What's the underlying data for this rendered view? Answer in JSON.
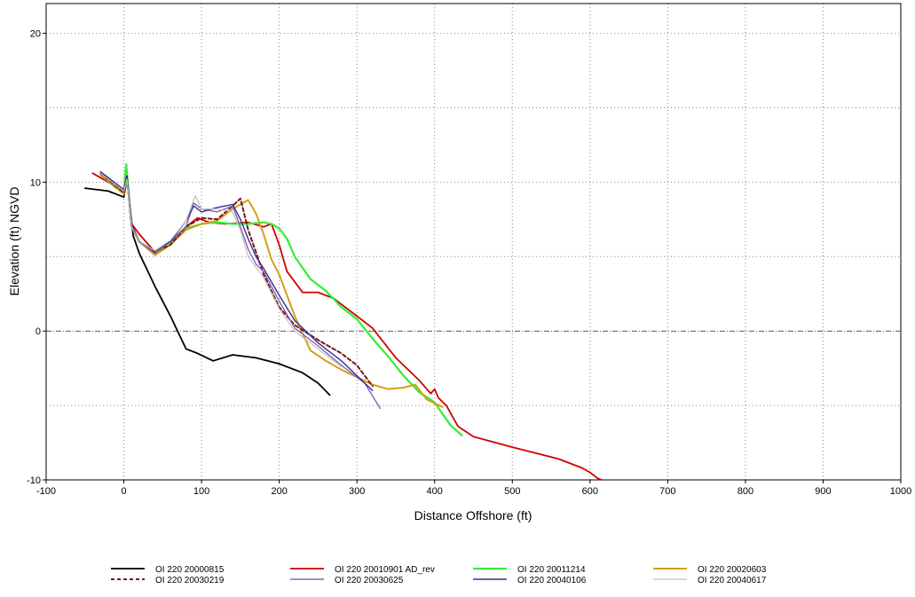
{
  "chart_data": {
    "type": "line",
    "title": "",
    "xlabel": "Distance Offshore (ft)",
    "ylabel": "Elevation (ft) NGVD",
    "xlim": [
      -100,
      1000
    ],
    "ylim": [
      -10,
      22
    ],
    "xticks": [
      -100,
      0,
      100,
      200,
      300,
      400,
      500,
      600,
      700,
      800,
      900,
      1000
    ],
    "yticks": [
      -10,
      0,
      10,
      20
    ],
    "grid": true,
    "grid_style": "dotted",
    "zero_line": true,
    "legend_position": "bottom",
    "series": [
      {
        "name": "OI 220 20000815",
        "color": "#000000",
        "width": 1.8,
        "dash": "",
        "x": [
          -50,
          -20,
          0,
          4,
          12,
          20,
          40,
          60,
          80,
          95,
          115,
          140,
          170,
          200,
          230,
          250,
          265
        ],
        "y": [
          9.6,
          9.4,
          9.0,
          10.2,
          6.4,
          5.2,
          3.0,
          1.0,
          -1.2,
          -1.5,
          -2.0,
          -1.6,
          -1.8,
          -2.2,
          -2.8,
          -3.5,
          -4.3
        ]
      },
      {
        "name": "OI 220 20010901 AD_rev",
        "color": "#d00000",
        "width": 1.8,
        "dash": "",
        "x": [
          -40,
          0,
          4,
          10,
          20,
          40,
          60,
          80,
          95,
          110,
          130,
          160,
          180,
          190,
          200,
          210,
          230,
          250,
          270,
          300,
          320,
          350,
          380,
          395,
          400,
          405,
          415,
          430,
          450,
          500,
          530,
          560,
          590,
          600,
          610,
          615
        ],
        "y": [
          10.6,
          9.4,
          10.5,
          7.2,
          6.5,
          5.3,
          6.0,
          7.0,
          7.6,
          7.3,
          7.2,
          7.3,
          7.0,
          7.2,
          5.8,
          4.0,
          2.6,
          2.6,
          2.2,
          1.0,
          0.2,
          -1.8,
          -3.3,
          -4.2,
          -3.9,
          -4.5,
          -5.0,
          -6.4,
          -7.1,
          -7.8,
          -8.2,
          -8.6,
          -9.2,
          -9.5,
          -9.9,
          -10.0
        ]
      },
      {
        "name": "OI 220 20011214",
        "color": "#33ee33",
        "width": 2.2,
        "dash": "",
        "x": [
          -30,
          -10,
          0,
          3,
          10,
          20,
          40,
          60,
          80,
          100,
          120,
          140,
          160,
          180,
          190,
          200,
          210,
          220,
          240,
          260,
          280,
          300,
          320,
          340,
          360,
          380,
          400,
          420,
          435
        ],
        "y": [
          10.5,
          9.6,
          9.4,
          11.2,
          7.0,
          6.0,
          5.3,
          6.0,
          6.9,
          7.2,
          7.3,
          7.2,
          7.2,
          7.3,
          7.2,
          6.9,
          6.2,
          5.0,
          3.5,
          2.7,
          1.6,
          0.8,
          -0.5,
          -1.7,
          -3.0,
          -4.1,
          -4.8,
          -6.3,
          -7.0
        ]
      },
      {
        "name": "OI 220 20020603",
        "color": "#d4a017",
        "width": 2.0,
        "dash": "",
        "x": [
          -30,
          0,
          4,
          10,
          20,
          40,
          60,
          80,
          100,
          120,
          140,
          160,
          170,
          180,
          190,
          200,
          220,
          240,
          260,
          280,
          300,
          320,
          340,
          360,
          375,
          390,
          410
        ],
        "y": [
          10.5,
          9.2,
          10.3,
          7.0,
          6.0,
          5.1,
          5.8,
          6.8,
          7.2,
          7.4,
          8.2,
          8.8,
          7.9,
          6.5,
          4.8,
          3.8,
          1.0,
          -1.3,
          -2.0,
          -2.6,
          -3.1,
          -3.6,
          -3.9,
          -3.8,
          -3.6,
          -4.6,
          -5.1
        ]
      },
      {
        "name": "OI 220 20030219",
        "color": "#7b1515",
        "width": 2.0,
        "dash": "4,3",
        "x": [
          -30,
          0,
          4,
          10,
          20,
          40,
          60,
          80,
          100,
          120,
          140,
          150,
          160,
          170,
          180,
          200,
          220,
          250,
          280,
          300,
          320
        ],
        "y": [
          10.6,
          9.3,
          10.4,
          7.0,
          6.0,
          5.3,
          5.8,
          7.0,
          7.6,
          7.5,
          8.4,
          8.9,
          6.8,
          5.3,
          3.8,
          1.6,
          0.4,
          -0.6,
          -1.5,
          -2.3,
          -3.7
        ]
      },
      {
        "name": "OI 220 20030625",
        "color": "#8a60b8",
        "width": 1.4,
        "dash": "",
        "x": [
          -30,
          0,
          4,
          10,
          20,
          40,
          60,
          80,
          90,
          100,
          120,
          140,
          150,
          160,
          170,
          180,
          200,
          220,
          250,
          280,
          310,
          330
        ],
        "y": [
          10.6,
          9.4,
          10.3,
          7.0,
          6.0,
          5.2,
          6.0,
          7.0,
          8.6,
          8.2,
          8.0,
          8.4,
          7.0,
          5.5,
          4.5,
          4.0,
          2.0,
          0.2,
          -1.0,
          -2.3,
          -3.5,
          -5.2
        ]
      },
      {
        "name": "OI 220 20040106",
        "color": "#303090",
        "width": 1.4,
        "dash": "",
        "x": [
          -30,
          0,
          4,
          10,
          20,
          40,
          60,
          80,
          90,
          100,
          120,
          140,
          150,
          160,
          170,
          180,
          200,
          220,
          250,
          280,
          300,
          320
        ],
        "y": [
          10.7,
          9.5,
          10.4,
          7.2,
          6.0,
          5.4,
          6.0,
          7.4,
          8.4,
          8.0,
          8.3,
          8.5,
          7.5,
          6.2,
          5.0,
          4.2,
          2.4,
          0.7,
          -0.8,
          -2.0,
          -3.0,
          -4.0
        ]
      },
      {
        "name": "OI 220 20040617",
        "color": "#c0c0c0",
        "width": 1.2,
        "dash": "",
        "x": [
          -30,
          0,
          4,
          10,
          20,
          40,
          60,
          80,
          92,
          100,
          120,
          140,
          150,
          160,
          180,
          200,
          220,
          250,
          280
        ],
        "y": [
          10.6,
          9.4,
          10.2,
          7.0,
          6.0,
          5.4,
          6.1,
          7.4,
          9.1,
          8.2,
          8.2,
          8.0,
          6.8,
          5.0,
          3.6,
          1.5,
          0.0,
          -1.2,
          -2.4
        ]
      }
    ]
  }
}
